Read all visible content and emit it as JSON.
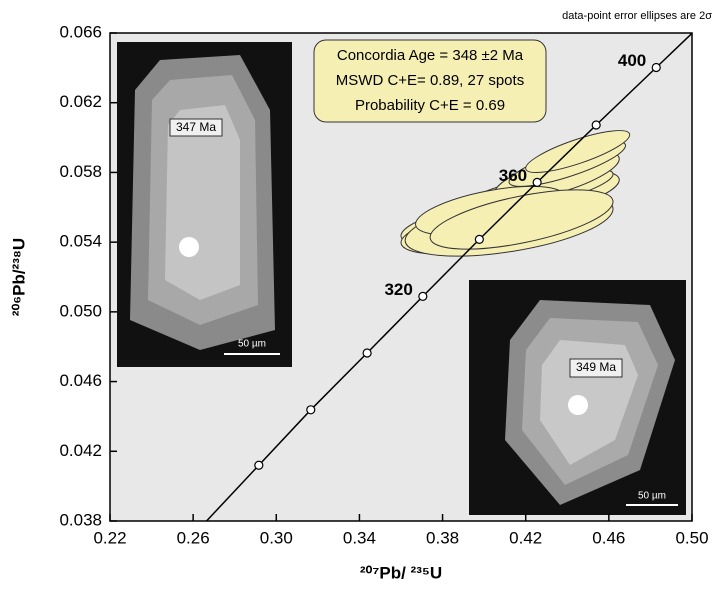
{
  "chart_data": {
    "type": "concordia",
    "note": "data-point error ellipses are 2σ",
    "x_label": "²⁰⁷Pb/ ²³⁵U",
    "y_label": "²⁰⁶Pb/²³⁸U",
    "xlim": [
      0.22,
      0.5
    ],
    "ylim": [
      0.038,
      0.066
    ],
    "xticks": [
      0.22,
      0.26,
      {
        "value": 0.3,
        "label": "0.30"
      },
      0.34,
      0.38,
      0.42,
      0.46,
      {
        "value": 0.5,
        "label": "0.50"
      }
    ],
    "yticks": [
      0.038,
      0.042,
      0.046,
      {
        "value": 0.05,
        "label": "0.050"
      },
      0.054,
      0.058,
      0.062,
      0.066
    ],
    "concordia": {
      "x": [
        0.2916,
        0.3166,
        0.3437,
        0.3705,
        0.3977,
        0.4255,
        0.4539,
        0.4828
      ],
      "y": [
        0.0412,
        0.04438,
        0.04764,
        0.05089,
        0.05416,
        0.05743,
        0.06072,
        0.06402
      ],
      "labels": [
        null,
        null,
        null,
        320,
        null,
        360,
        null,
        400
      ]
    },
    "ellipses": {
      "color": "#f6efb4",
      "x": [
        0.4,
        0.405,
        0.41,
        0.415,
        0.42,
        0.398,
        0.425,
        0.43,
        0.412,
        0.435,
        0.44,
        0.403,
        0.418,
        0.445
      ],
      "y": [
        0.0552,
        0.0548,
        0.0556,
        0.056,
        0.0562,
        0.0545,
        0.0566,
        0.057,
        0.055,
        0.0578,
        0.0585,
        0.0558,
        0.0553,
        0.0592
      ],
      "x_err": [
        0.04,
        0.045,
        0.038,
        0.042,
        0.035,
        0.03,
        0.04,
        0.032,
        0.05,
        0.03,
        0.028,
        0.036,
        0.044,
        0.025
      ],
      "y_err": [
        0.0014,
        0.0015,
        0.0013,
        0.0016,
        0.0013,
        0.0012,
        0.0015,
        0.0012,
        0.0018,
        0.0014,
        0.0013,
        0.0014,
        0.0017,
        0.0012
      ],
      "rho": [
        0.6,
        0.55,
        0.65,
        0.6,
        0.7,
        0.5,
        0.65,
        0.75,
        0.5,
        0.7,
        0.8,
        0.55,
        0.6,
        0.8
      ]
    },
    "result_box": [
      "Concordia Age = 348 ±2 Ma",
      "MSWD C+E= 0.89, 27 spots",
      "Probability C+E = 0.69"
    ],
    "inset_left": {
      "age": "347 Ma",
      "scale": "50 µm"
    },
    "inset_right": {
      "age": "349 Ma",
      "scale": "50 µm"
    }
  }
}
